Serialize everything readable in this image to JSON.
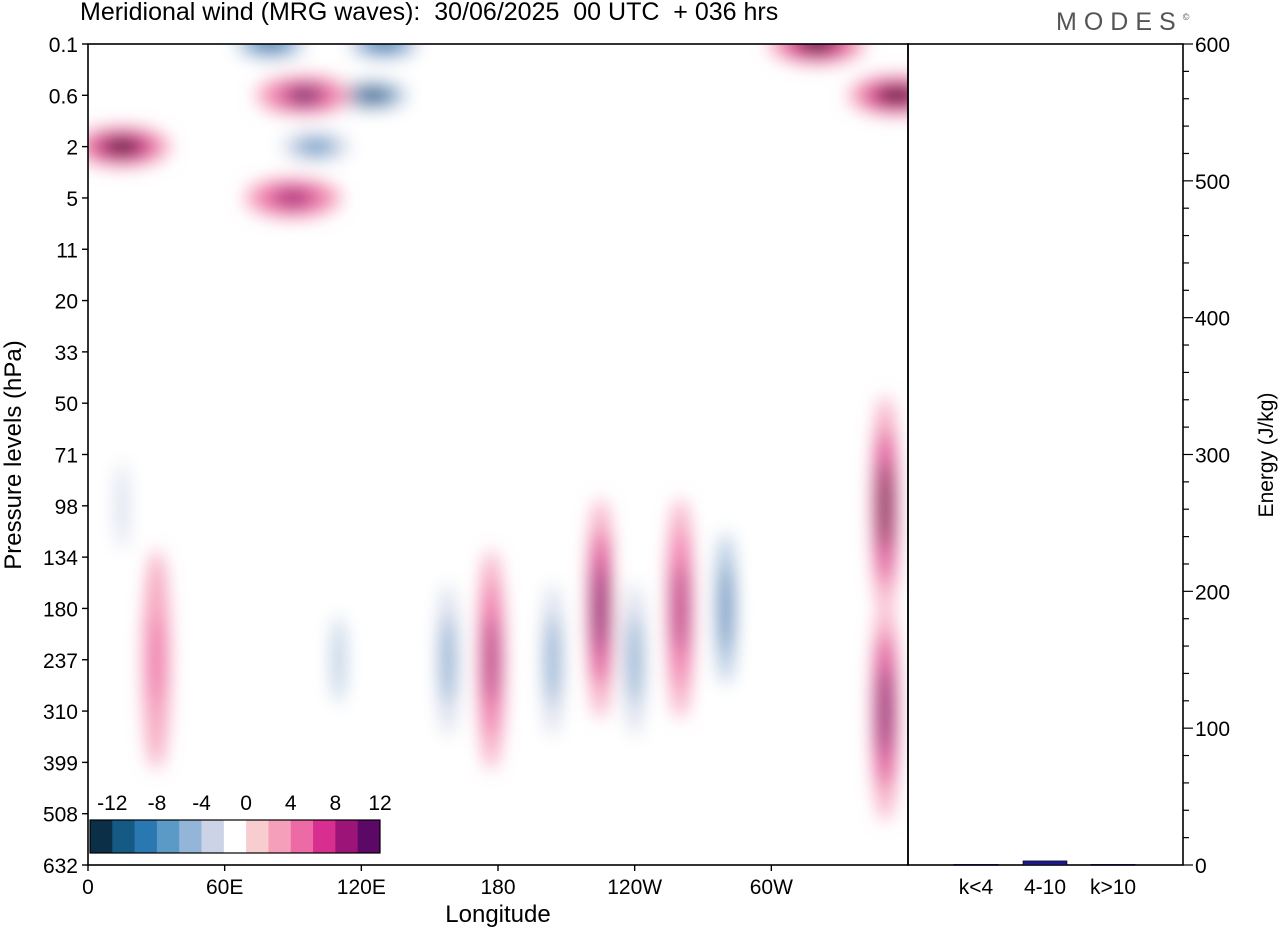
{
  "title": "Meridional wind (MRG waves):  30/06/2025  00 UTC  + 036 hrs",
  "logo": {
    "text": "MODES",
    "mark": "©"
  },
  "chart_data": [
    {
      "type": "heatmap",
      "title": "Meridional wind (MRG waves):  30/06/2025  00 UTC  + 036 hrs",
      "xlabel": "Longitude",
      "ylabel": "Pressure levels (hPa)",
      "x_ticks": [
        "0",
        "60E",
        "120E",
        "180",
        "120W",
        "60W"
      ],
      "x_tick_degrees": [
        0,
        60,
        120,
        180,
        240,
        300
      ],
      "xlim": [
        0,
        360
      ],
      "y_ticks": [
        "0.1",
        "0.6",
        "2",
        "5",
        "11",
        "20",
        "33",
        "50",
        "71",
        "98",
        "134",
        "180",
        "237",
        "310",
        "399",
        "508",
        "632"
      ],
      "colorbar": {
        "labels": [
          "-12",
          "-8",
          "-4",
          "0",
          "4",
          "8",
          "12"
        ],
        "levels": [
          -14,
          -12,
          -10,
          -8,
          -6,
          -4,
          -2,
          2,
          4,
          6,
          8,
          10,
          12,
          14
        ],
        "colors": [
          "#0b2f47",
          "#155a84",
          "#2a78b2",
          "#5b9ac7",
          "#93b6d8",
          "#ccd3e6",
          "#ffffff",
          "#f8cdcf",
          "#f59fba",
          "#ec6aa6",
          "#d72e8f",
          "#9c1477",
          "#5c0866"
        ]
      },
      "features": [
        {
          "lon": 15,
          "lev": "2",
          "value": 13
        },
        {
          "lon": 320,
          "lev": "0.1",
          "value": 13
        },
        {
          "lon": 355,
          "lev": "0.6",
          "value": 13
        },
        {
          "lon": 80,
          "lev": "0.1",
          "value": -12
        },
        {
          "lon": 130,
          "lev": "0.1",
          "value": -12
        },
        {
          "lon": 125,
          "lev": "0.6",
          "value": -13
        },
        {
          "lon": 100,
          "lev": "2",
          "value": -9
        },
        {
          "lon": 95,
          "lev": "0.6",
          "value": 10
        },
        {
          "lon": 90,
          "lev": "5",
          "value": 9
        },
        {
          "lon": 350,
          "lev": "98",
          "value": 13
        },
        {
          "lon": 158,
          "lev": "237",
          "value": -10
        },
        {
          "lon": 177,
          "lev": "237",
          "value": 9
        },
        {
          "lon": 204,
          "lev": "237",
          "value": -10
        },
        {
          "lon": 225,
          "lev": "180",
          "value": 11
        },
        {
          "lon": 240,
          "lev": "237",
          "value": -9
        },
        {
          "lon": 260,
          "lev": "180",
          "value": 9
        },
        {
          "lon": 280,
          "lev": "180",
          "value": -11
        },
        {
          "lon": 350,
          "lev": "310",
          "value": 11
        },
        {
          "lon": 15,
          "lev": "98",
          "value": -6
        },
        {
          "lon": 30,
          "lev": "237",
          "value": 5
        },
        {
          "lon": 110,
          "lev": "237",
          "value": -7
        }
      ]
    },
    {
      "type": "bar",
      "categories": [
        "k<4",
        "4-10",
        "k>10"
      ],
      "values": [
        0.5,
        3,
        0.5
      ],
      "ylabel": "Energy (J/kg)",
      "ylim": [
        0,
        600
      ],
      "yticks": [
        0,
        100,
        200,
        300,
        400,
        500,
        600
      ],
      "bar_colors": [
        "#1a1a8c",
        "#1a1a8c",
        "#1a1a8c"
      ]
    }
  ]
}
